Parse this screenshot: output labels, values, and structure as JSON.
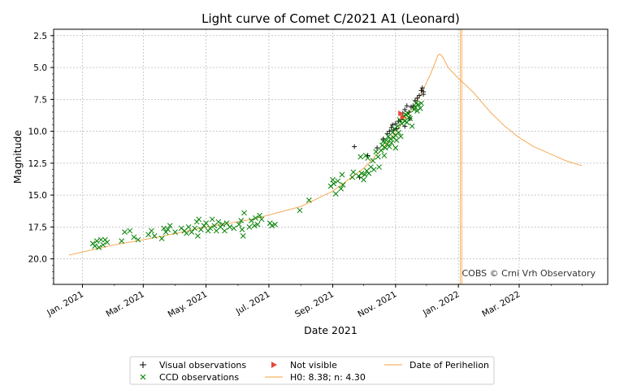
{
  "chart_data": {
    "type": "scatter",
    "title": "Light curve of Comet C/2021 A1 (Leonard)",
    "xlabel": "Date 2021",
    "ylabel": "Magnitude",
    "y_inverted": true,
    "ylim": [
      22.0,
      2.0
    ],
    "xlim": [
      "2020-12-04",
      "2022-05-26"
    ],
    "grid": true,
    "legend_position": "below-center",
    "x_ticks": [
      {
        "date": "2021-01-01",
        "label": "Jan. 2021"
      },
      {
        "date": "2021-03-01",
        "label": "Mar. 2021"
      },
      {
        "date": "2021-05-01",
        "label": "May. 2021"
      },
      {
        "date": "2021-07-01",
        "label": "Jul. 2021"
      },
      {
        "date": "2021-09-01",
        "label": "Sep. 2021"
      },
      {
        "date": "2021-11-01",
        "label": "Nov. 2021"
      },
      {
        "date": "2022-01-01",
        "label": "Jan. 2022"
      },
      {
        "date": "2022-03-01",
        "label": "Mar. 2022"
      }
    ],
    "y_ticks": [
      "2.5",
      "5.0",
      "7.5",
      "10.0",
      "12.5",
      "15.0",
      "17.5",
      "20.0"
    ],
    "colors": {
      "visual": "#000000",
      "ccd": "#008000",
      "not_visible": "#e8473b",
      "model": "#f5a142",
      "grid": "#aaaaaa"
    },
    "series": [
      {
        "name": "Visual observations",
        "marker": "plus",
        "points": [
          [
            "2021-09-22",
            11.2
          ],
          [
            "2021-09-27",
            13.6
          ],
          [
            "2021-10-05",
            11.9
          ],
          [
            "2021-10-14",
            11.3
          ],
          [
            "2021-10-20",
            10.6
          ],
          [
            "2021-10-24",
            10.2
          ],
          [
            "2021-10-26",
            10.0
          ],
          [
            "2021-10-28",
            9.7
          ],
          [
            "2021-10-30",
            9.9
          ],
          [
            "2021-11-01",
            9.4
          ],
          [
            "2021-11-02",
            9.8
          ],
          [
            "2021-11-04",
            9.2
          ],
          [
            "2021-11-06",
            9.1
          ],
          [
            "2021-11-08",
            8.6
          ],
          [
            "2021-11-10",
            8.3
          ],
          [
            "2021-11-12",
            8.0
          ],
          [
            "2021-11-14",
            8.5
          ],
          [
            "2021-11-16",
            8.1
          ],
          [
            "2021-11-18",
            8.0
          ],
          [
            "2021-11-20",
            7.6
          ],
          [
            "2021-11-22",
            7.4
          ],
          [
            "2021-11-24",
            7.2
          ],
          [
            "2021-11-26",
            6.8
          ],
          [
            "2021-11-27",
            6.6
          ],
          [
            "2021-11-28",
            6.9
          ],
          [
            "2021-11-28",
            7.1
          ],
          [
            "2021-11-10",
            9.6
          ],
          [
            "2021-11-15",
            9.0
          ],
          [
            "2021-10-29",
            9.5
          ]
        ]
      },
      {
        "name": "CCD observations",
        "marker": "x",
        "points": [
          [
            "2021-01-11",
            18.8
          ],
          [
            "2021-01-13",
            19.0
          ],
          [
            "2021-01-15",
            18.6
          ],
          [
            "2021-01-17",
            19.1
          ],
          [
            "2021-01-19",
            18.5
          ],
          [
            "2021-01-21",
            18.9
          ],
          [
            "2021-01-23",
            18.5
          ],
          [
            "2021-01-25",
            18.7
          ],
          [
            "2021-02-08",
            18.6
          ],
          [
            "2021-02-11",
            17.9
          ],
          [
            "2021-02-16",
            17.8
          ],
          [
            "2021-02-20",
            18.3
          ],
          [
            "2021-02-24",
            18.5
          ],
          [
            "2021-03-06",
            18.1
          ],
          [
            "2021-03-09",
            17.8
          ],
          [
            "2021-03-12",
            18.2
          ],
          [
            "2021-03-19",
            18.4
          ],
          [
            "2021-03-21",
            17.6
          ],
          [
            "2021-03-23",
            17.9
          ],
          [
            "2021-03-25",
            17.7
          ],
          [
            "2021-03-27",
            17.4
          ],
          [
            "2021-04-01",
            17.9
          ],
          [
            "2021-04-07",
            17.6
          ],
          [
            "2021-04-10",
            17.8
          ],
          [
            "2021-04-12",
            18.0
          ],
          [
            "2021-04-14",
            17.5
          ],
          [
            "2021-04-17",
            17.9
          ],
          [
            "2021-04-20",
            17.6
          ],
          [
            "2021-04-22",
            17.1
          ],
          [
            "2021-04-23",
            18.2
          ],
          [
            "2021-04-24",
            16.9
          ],
          [
            "2021-04-26",
            17.7
          ],
          [
            "2021-04-29",
            17.4
          ],
          [
            "2021-05-01",
            17.2
          ],
          [
            "2021-05-03",
            17.8
          ],
          [
            "2021-05-05",
            17.6
          ],
          [
            "2021-05-07",
            16.9
          ],
          [
            "2021-05-09",
            17.4
          ],
          [
            "2021-05-11",
            17.8
          ],
          [
            "2021-05-13",
            17.1
          ],
          [
            "2021-05-15",
            17.5
          ],
          [
            "2021-05-17",
            17.3
          ],
          [
            "2021-05-19",
            17.8
          ],
          [
            "2021-05-21",
            17.2
          ],
          [
            "2021-05-24",
            17.5
          ],
          [
            "2021-05-28",
            17.6
          ],
          [
            "2021-06-02",
            17.3
          ],
          [
            "2021-06-04",
            17.0
          ],
          [
            "2021-06-05",
            17.7
          ],
          [
            "2021-06-06",
            18.2
          ],
          [
            "2021-06-07",
            16.4
          ],
          [
            "2021-06-12",
            17.5
          ],
          [
            "2021-06-14",
            17.0
          ],
          [
            "2021-06-17",
            17.4
          ],
          [
            "2021-06-18",
            16.8
          ],
          [
            "2021-06-20",
            17.3
          ],
          [
            "2021-06-22",
            16.6
          ],
          [
            "2021-06-24",
            16.9
          ],
          [
            "2021-07-02",
            17.2
          ],
          [
            "2021-07-04",
            17.4
          ],
          [
            "2021-07-07",
            17.3
          ],
          [
            "2021-07-31",
            16.2
          ],
          [
            "2021-08-09",
            15.4
          ],
          [
            "2021-08-30",
            14.3
          ],
          [
            "2021-09-01",
            13.8
          ],
          [
            "2021-09-02",
            14.1
          ],
          [
            "2021-09-04",
            14.9
          ],
          [
            "2021-09-06",
            13.9
          ],
          [
            "2021-09-09",
            14.5
          ],
          [
            "2021-09-10",
            13.4
          ],
          [
            "2021-09-11",
            14.2
          ],
          [
            "2021-09-20",
            13.6
          ],
          [
            "2021-09-21",
            13.2
          ],
          [
            "2021-09-26",
            13.5
          ],
          [
            "2021-09-28",
            12.0
          ],
          [
            "2021-09-29",
            13.3
          ],
          [
            "2021-10-01",
            13.8
          ],
          [
            "2021-10-02",
            13.4
          ],
          [
            "2021-10-03",
            11.9
          ],
          [
            "2021-10-04",
            13.1
          ],
          [
            "2021-10-05",
            12.1
          ],
          [
            "2021-10-06",
            13.3
          ],
          [
            "2021-10-08",
            12.8
          ],
          [
            "2021-10-10",
            12.3
          ],
          [
            "2021-10-11",
            13.0
          ],
          [
            "2021-10-13",
            11.6
          ],
          [
            "2021-10-15",
            12.0
          ],
          [
            "2021-10-16",
            12.8
          ],
          [
            "2021-10-18",
            11.5
          ],
          [
            "2021-10-19",
            11.1
          ],
          [
            "2021-10-20",
            10.8
          ],
          [
            "2021-10-21",
            11.9
          ],
          [
            "2021-10-22",
            11.3
          ],
          [
            "2021-10-23",
            10.7
          ],
          [
            "2021-10-24",
            11.0
          ],
          [
            "2021-10-25",
            10.4
          ],
          [
            "2021-10-26",
            11.2
          ],
          [
            "2021-10-27",
            10.6
          ],
          [
            "2021-10-28",
            10.9
          ],
          [
            "2021-10-29",
            10.1
          ],
          [
            "2021-10-30",
            10.5
          ],
          [
            "2021-10-31",
            9.8
          ],
          [
            "2021-11-01",
            10.3
          ],
          [
            "2021-11-01",
            11.3
          ],
          [
            "2021-11-02",
            10.7
          ],
          [
            "2021-11-03",
            9.6
          ],
          [
            "2021-11-04",
            10.1
          ],
          [
            "2021-11-05",
            9.1
          ],
          [
            "2021-11-06",
            10.4
          ],
          [
            "2021-11-07",
            9.4
          ],
          [
            "2021-11-08",
            9.0
          ],
          [
            "2021-11-09",
            8.8
          ],
          [
            "2021-11-10",
            9.2
          ],
          [
            "2021-11-11",
            8.7
          ],
          [
            "2021-11-12",
            9.3
          ],
          [
            "2021-11-13",
            8.6
          ],
          [
            "2021-11-14",
            8.9
          ],
          [
            "2021-11-15",
            9.0
          ],
          [
            "2021-11-17",
            9.6
          ],
          [
            "2021-11-19",
            8.3
          ],
          [
            "2021-11-20",
            8.1
          ],
          [
            "2021-11-21",
            7.8
          ],
          [
            "2021-11-22",
            8.4
          ],
          [
            "2021-11-23",
            7.9
          ],
          [
            "2021-11-25",
            8.2
          ],
          [
            "2021-11-26",
            7.8
          ]
        ]
      },
      {
        "name": "Not visible",
        "marker": "triangle-right",
        "points": [
          [
            "2021-11-06",
            8.6
          ],
          [
            "2021-11-08",
            8.9
          ]
        ]
      },
      {
        "name": "H0: 8.38; n: 4.30",
        "marker": "line",
        "points": [
          [
            "2020-12-19",
            19.7
          ],
          [
            "2021-02-01",
            18.9
          ],
          [
            "2021-03-15",
            18.3
          ],
          [
            "2021-05-01",
            17.5
          ],
          [
            "2021-06-15",
            16.9
          ],
          [
            "2021-08-01",
            15.9
          ],
          [
            "2021-09-01",
            14.7
          ],
          [
            "2021-10-01",
            12.9
          ],
          [
            "2021-10-20",
            11.3
          ],
          [
            "2021-11-01",
            10.1
          ],
          [
            "2021-11-15",
            8.5
          ],
          [
            "2021-11-25",
            7.2
          ],
          [
            "2021-12-05",
            5.5
          ],
          [
            "2021-12-10",
            4.5
          ],
          [
            "2021-12-12",
            4.05
          ],
          [
            "2021-12-14",
            3.95
          ],
          [
            "2021-12-17",
            4.2
          ],
          [
            "2021-12-22",
            5.0
          ],
          [
            "2022-01-01",
            5.85
          ],
          [
            "2022-01-15",
            6.9
          ],
          [
            "2022-02-01",
            8.5
          ],
          [
            "2022-02-15",
            9.6
          ],
          [
            "2022-03-01",
            10.5
          ],
          [
            "2022-03-15",
            11.2
          ],
          [
            "2022-04-01",
            11.8
          ],
          [
            "2022-04-15",
            12.3
          ],
          [
            "2022-05-01",
            12.7
          ]
        ]
      },
      {
        "name": "Date of Perihelion",
        "marker": "vline",
        "date": "2022-01-03"
      }
    ],
    "annotations": [
      "COBS © Crni Vrh Observatory"
    ]
  },
  "legend": {
    "visual": "Visual observations",
    "ccd": "CCD observations",
    "not_visible": "Not visible",
    "model": "H0: 8.38; n: 4.30",
    "perihelion": "Date of Perihelion"
  }
}
